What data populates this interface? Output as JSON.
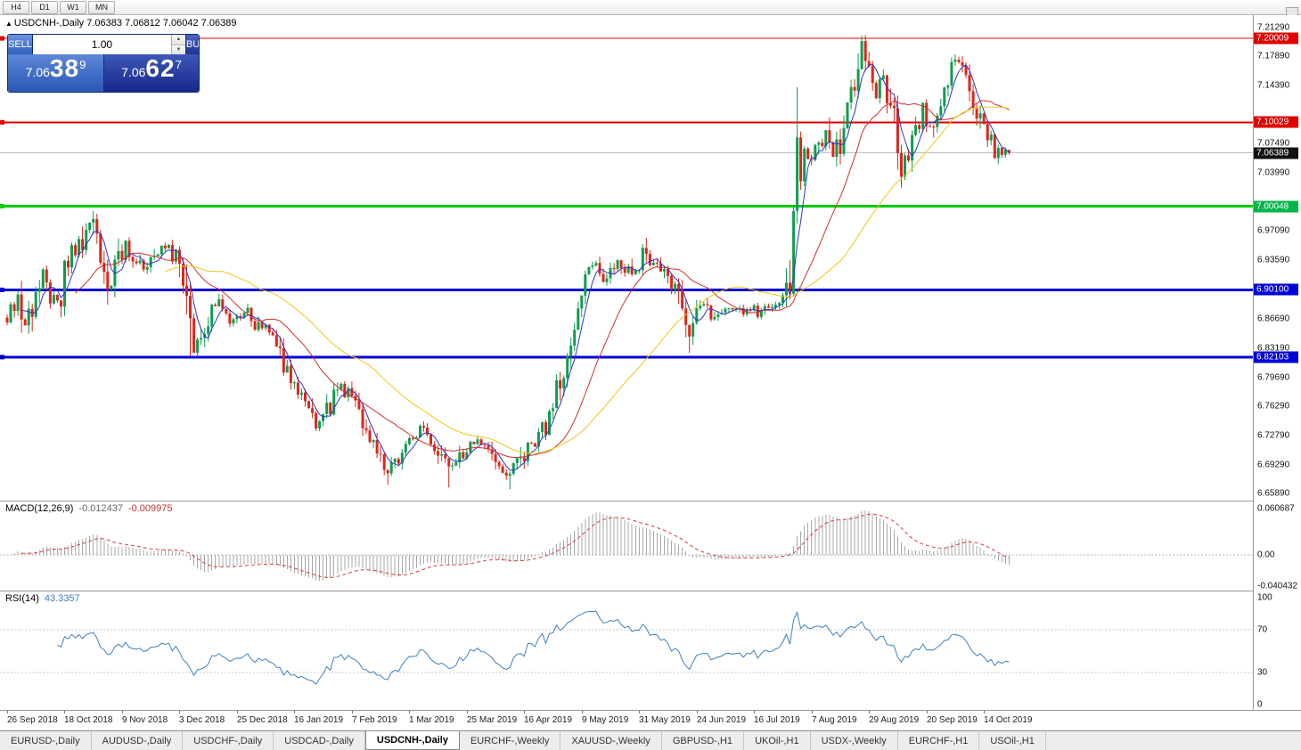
{
  "toolbar": {
    "timeframes": [
      "H4",
      "D1",
      "W1",
      "MN"
    ]
  },
  "header": {
    "direction_icon": "▲",
    "title": "USDCNH-,Daily",
    "ohlc": "7.06383 7.06812 7.06042 7.06389"
  },
  "trade_widget": {
    "sell_label": "SELL",
    "buy_label": "BUY",
    "volume": "1.00",
    "spinner_up": "▲",
    "spinner_down": "▼",
    "sell_price": {
      "prefix": "7.06",
      "big": "38",
      "sup": "9"
    },
    "buy_price": {
      "prefix": "7.06",
      "big": "62",
      "sup": "7"
    }
  },
  "indicators": {
    "macd": {
      "title": "MACD(12,26,9)",
      "main_value": "-0.012437",
      "signal_value": "-0.009975",
      "axis": [
        {
          "label": "0.060687",
          "value": 0.060687
        },
        {
          "label": "0.00",
          "value": 0
        },
        {
          "label": "-0.040432",
          "value": -0.040432
        }
      ]
    },
    "rsi": {
      "title": "RSI(14)",
      "value": "43.3357",
      "axis": [
        {
          "label": "100",
          "value": 100
        },
        {
          "label": "70",
          "value": 70
        },
        {
          "label": "30",
          "value": 30
        },
        {
          "label": "0",
          "value": 0
        }
      ],
      "levels": [
        70,
        30
      ]
    }
  },
  "price_axis": {
    "ticks": [
      {
        "label": "7.21290",
        "price": 7.2129
      },
      {
        "label": "7.17890",
        "price": 7.1789
      },
      {
        "label": "7.14390",
        "price": 7.1439
      },
      {
        "label": "7.07490",
        "price": 7.0749
      },
      {
        "label": "7.03990",
        "price": 7.0399
      },
      {
        "label": "6.97090",
        "price": 6.9709
      },
      {
        "label": "6.93590",
        "price": 6.9359
      },
      {
        "label": "6.86690",
        "price": 6.8669
      },
      {
        "label": "6.83190",
        "price": 6.8319
      },
      {
        "label": "6.79690",
        "price": 6.7969
      },
      {
        "label": "6.76290",
        "price": 6.7629
      },
      {
        "label": "6.72790",
        "price": 6.7279
      },
      {
        "label": "6.69290",
        "price": 6.6929
      },
      {
        "label": "6.65890",
        "price": 6.6589
      }
    ],
    "badges": [
      {
        "label": "7.20009",
        "price": 7.20009,
        "bg": "#e00000"
      },
      {
        "label": "7.10029",
        "price": 7.10029,
        "bg": "#e00000"
      },
      {
        "label": "7.06389",
        "price": 7.06389,
        "bg": "#111111"
      },
      {
        "label": "7.00048",
        "price": 7.00048,
        "bg": "#00b44a"
      },
      {
        "label": "6.90100",
        "price": 6.901,
        "bg": "#0000d8"
      },
      {
        "label": "6.82103",
        "price": 6.82103,
        "bg": "#0000d8"
      }
    ]
  },
  "tabs": {
    "active_index": 4,
    "items": [
      "EURUSD-,Daily",
      "AUDUSD-,Daily",
      "USDCHF-,Daily",
      "USDCAD-,Daily",
      "USDCNH-,Daily",
      "EURCHF-,Weekly",
      "XAUUSD-,Weekly",
      "GBPUSD-,H1",
      "UKOil-,H1",
      "USDX-,Weekly",
      "EURCHF-,H1",
      "USOil-,H1"
    ]
  },
  "chart_data": {
    "type": "candlestick",
    "symbol": "USDCNH-",
    "timeframe": "Daily",
    "last_ohlc": {
      "open": 7.06383,
      "high": 7.06812,
      "low": 7.06042,
      "close": 7.06389
    },
    "bid": 7.06389,
    "ask": 7.06627,
    "num_bars": 280,
    "bars_per_label": 16,
    "x_labels": [
      "26 Sep 2018",
      "18 Oct 2018",
      "9 Nov 2018",
      "3 Dec 2018",
      "25 Dec 2018",
      "16 Jan 2019",
      "7 Feb 2019",
      "1 Mar 2019",
      "25 Mar 2019",
      "16 Apr 2019",
      "9 May 2019",
      "31 May 2019",
      "24 Jun 2019",
      "16 Jul 2019",
      "7 Aug 2019",
      "29 Aug 2019",
      "20 Sep 2019",
      "14 Oct 2019"
    ],
    "y_range": {
      "top": 7.2277,
      "bottom": 6.6505
    },
    "horizontal_levels": [
      {
        "price": 7.20009,
        "color": "#e00000",
        "width": 1
      },
      {
        "price": 7.10029,
        "color": "#e00000",
        "width": 2
      },
      {
        "price": 7.00048,
        "color": "#00cc00",
        "width": 3
      },
      {
        "price": 6.901,
        "color": "#0000d8",
        "width": 3
      },
      {
        "price": 6.82103,
        "color": "#0000d8",
        "width": 3
      }
    ],
    "bid_line": {
      "price": 7.06389,
      "color": "#c0c0c0"
    },
    "candle_colors": {
      "up": "#0f9d4f",
      "down": "#e02518"
    },
    "moving_averages": [
      {
        "period": 5,
        "color": "#2b35c8"
      },
      {
        "period": 20,
        "color": "#d03030"
      },
      {
        "period": 45,
        "color": "#efc61c"
      }
    ],
    "macd": {
      "fast": 12,
      "slow": 26,
      "signal": 9,
      "histogram_color": "#a8a8a8",
      "signal_color": "#d04040",
      "current": {
        "main": -0.012437,
        "signal": -0.009975
      }
    },
    "rsi": {
      "period": 14,
      "color": "#4080bf",
      "current": 43.3357
    },
    "close_waypoints": [
      [
        0,
        6.868
      ],
      [
        3,
        6.892
      ],
      [
        5,
        6.853
      ],
      [
        8,
        6.905
      ],
      [
        10,
        6.928
      ],
      [
        12,
        6.896
      ],
      [
        14,
        6.878
      ],
      [
        16,
        6.92
      ],
      [
        18,
        6.946
      ],
      [
        20,
        6.952
      ],
      [
        23,
        6.986
      ],
      [
        25,
        6.952
      ],
      [
        27,
        6.936
      ],
      [
        29,
        6.902
      ],
      [
        31,
        6.94
      ],
      [
        33,
        6.963
      ],
      [
        35,
        6.94
      ],
      [
        38,
        6.927
      ],
      [
        41,
        6.946
      ],
      [
        44,
        6.953
      ],
      [
        47,
        6.936
      ],
      [
        49,
        6.912
      ],
      [
        51,
        6.855
      ],
      [
        52,
        6.836
      ],
      [
        54,
        6.852
      ],
      [
        56,
        6.87
      ],
      [
        58,
        6.887
      ],
      [
        60,
        6.872
      ],
      [
        63,
        6.865
      ],
      [
        66,
        6.877
      ],
      [
        69,
        6.862
      ],
      [
        72,
        6.852
      ],
      [
        75,
        6.842
      ],
      [
        78,
        6.805
      ],
      [
        80,
        6.792
      ],
      [
        82,
        6.78
      ],
      [
        84,
        6.766
      ],
      [
        86,
        6.738
      ],
      [
        88,
        6.746
      ],
      [
        91,
        6.775
      ],
      [
        93,
        6.788
      ],
      [
        96,
        6.772
      ],
      [
        98,
        6.752
      ],
      [
        101,
        6.722
      ],
      [
        104,
        6.7
      ],
      [
        106,
        6.682
      ],
      [
        108,
        6.695
      ],
      [
        110,
        6.712
      ],
      [
        113,
        6.728
      ],
      [
        116,
        6.738
      ],
      [
        119,
        6.72
      ],
      [
        121,
        6.702
      ],
      [
        123,
        6.69
      ],
      [
        126,
        6.703
      ],
      [
        129,
        6.714
      ],
      [
        132,
        6.722
      ],
      [
        134,
        6.712
      ],
      [
        137,
        6.698
      ],
      [
        140,
        6.678
      ],
      [
        142,
        6.692
      ],
      [
        144,
        6.708
      ],
      [
        146,
        6.718
      ],
      [
        148,
        6.727
      ],
      [
        150,
        6.742
      ],
      [
        152,
        6.768
      ],
      [
        154,
        6.797
      ],
      [
        156,
        6.822
      ],
      [
        158,
        6.856
      ],
      [
        160,
        6.896
      ],
      [
        162,
        6.918
      ],
      [
        164,
        6.93
      ],
      [
        166,
        6.912
      ],
      [
        168,
        6.922
      ],
      [
        170,
        6.934
      ],
      [
        172,
        6.92
      ],
      [
        174,
        6.926
      ],
      [
        176,
        6.936
      ],
      [
        177,
        6.958
      ],
      [
        178,
        6.944
      ],
      [
        180,
        6.934
      ],
      [
        182,
        6.926
      ],
      [
        184,
        6.912
      ],
      [
        186,
        6.902
      ],
      [
        188,
        6.868
      ],
      [
        190,
        6.843
      ],
      [
        192,
        6.872
      ],
      [
        194,
        6.882
      ],
      [
        196,
        6.868
      ],
      [
        198,
        6.876
      ],
      [
        200,
        6.884
      ],
      [
        202,
        6.872
      ],
      [
        204,
        6.876
      ],
      [
        206,
        6.882
      ],
      [
        208,
        6.878
      ],
      [
        210,
        6.872
      ],
      [
        212,
        6.878
      ],
      [
        214,
        6.882
      ],
      [
        216,
        6.887
      ],
      [
        218,
        6.916
      ],
      [
        219,
        7.005
      ],
      [
        220,
        7.078
      ],
      [
        221,
        7.042
      ],
      [
        222,
        7.06
      ],
      [
        224,
        7.052
      ],
      [
        226,
        7.07
      ],
      [
        228,
        7.088
      ],
      [
        230,
        7.058
      ],
      [
        232,
        7.082
      ],
      [
        234,
        7.125
      ],
      [
        236,
        7.15
      ],
      [
        238,
        7.192
      ],
      [
        240,
        7.158
      ],
      [
        242,
        7.135
      ],
      [
        244,
        7.148
      ],
      [
        246,
        7.118
      ],
      [
        248,
        7.082
      ],
      [
        249,
        7.048
      ],
      [
        251,
        7.062
      ],
      [
        253,
        7.088
      ],
      [
        255,
        7.118
      ],
      [
        257,
        7.098
      ],
      [
        259,
        7.122
      ],
      [
        261,
        7.145
      ],
      [
        263,
        7.162
      ],
      [
        265,
        7.172
      ],
      [
        267,
        7.148
      ],
      [
        269,
        7.118
      ],
      [
        271,
        7.102
      ],
      [
        273,
        7.088
      ],
      [
        275,
        7.068
      ],
      [
        277,
        7.058
      ],
      [
        279,
        7.06389
      ]
    ],
    "wick_overrides": [
      [
        51,
        6.822
      ],
      [
        106,
        6.669
      ],
      [
        123,
        6.666
      ],
      [
        140,
        6.664
      ],
      [
        190,
        6.826
      ],
      [
        220,
        7.142
      ],
      [
        238,
        7.197
      ]
    ]
  }
}
